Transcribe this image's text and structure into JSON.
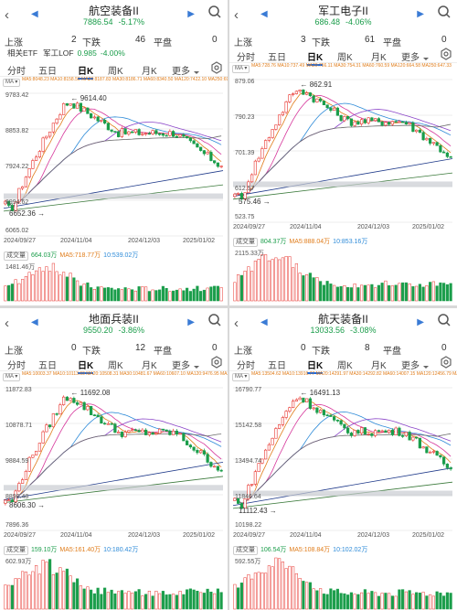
{
  "panels": [
    {
      "title": "航空装备II",
      "price": "7886.54",
      "change": "-5.17%",
      "up_label": "上涨",
      "up": "2",
      "down_label": "下跌",
      "down": "46",
      "flat_label": "平盘",
      "flat": "0",
      "etf": {
        "label": "相关ETF",
        "name": "军工LOF",
        "price": "0.985",
        "change": "-4.00%"
      },
      "tabs": [
        "分时",
        "五日",
        "日K",
        "周K",
        "月K",
        "更多"
      ],
      "ma_text": "MA5:8048.23 MA10:8158.50 MA20:8187.83 MA30:8186.71 MA60:8340.50 MA120:7422.10 MA250:6978.65",
      "y_labels": [
        "9783.42",
        "8853.82",
        "7924.22",
        "6994.62",
        "6065.02"
      ],
      "high_label": "9614.40",
      "low_label": "6652.36",
      "x_labels": [
        "2024/09/27",
        "2024/11/04",
        "2024/12/03",
        "2025/01/02"
      ],
      "vol_label": "成交量",
      "vol": "664.03万",
      "mavol5": "MA5:718.77万",
      "mavol10": "10:539.02万",
      "vol_axis": "1481.46万",
      "chart_data": {
        "type": "candlestick",
        "high": 9614.4,
        "low": 6652.36,
        "last": 7886.54,
        "y_range": [
          6065.02,
          9783.42
        ]
      }
    },
    {
      "title": "军工电子II",
      "price": "686.48",
      "change": "-4.06%",
      "up_label": "上涨",
      "up": "3",
      "down_label": "下跌",
      "down": "61",
      "flat_label": "平盘",
      "flat": "0",
      "tabs": [
        "分时",
        "五日",
        "日K",
        "周K",
        "月K",
        "更多"
      ],
      "ma_text": "MA5:728.76 MA10:737.49 MA20:756.11 MA30:754.31 MA60:760.59 MA120:664.58 MA250:647.33",
      "y_labels": [
        "879.06",
        "790.23",
        "701.39",
        "612.57",
        "523.75"
      ],
      "high_label": "862.91",
      "low_label": "575.46",
      "x_labels": [
        "2024/09/27",
        "2024/11/04",
        "2024/12/03",
        "2025/01/02"
      ],
      "vol_label": "成交量",
      "vol": "804.37万",
      "mavol5": "MA5:888.04万",
      "mavol10": "10:853.16万",
      "vol_axis": "2115.33万",
      "chart_data": {
        "type": "candlestick",
        "high": 862.91,
        "low": 575.46,
        "last": 686.48,
        "y_range": [
          523.75,
          879.06
        ]
      }
    },
    {
      "title": "地面兵装II",
      "price": "9550.20",
      "change": "-3.86%",
      "up_label": "上涨",
      "up": "0",
      "down_label": "下跌",
      "down": "12",
      "flat_label": "平盘",
      "flat": "0",
      "tabs": [
        "分时",
        "五日",
        "日K",
        "周K",
        "月K",
        "更多"
      ],
      "ma_text": "MA5:10003.37 MA10:10113.69 MA20:10508.31 MA30:10481.67 MA60:10607.10 MA120:9476.95 MA250:9292.41",
      "y_labels": [
        "11872.83",
        "10878.71",
        "9884.59",
        "8890.48",
        "7896.36"
      ],
      "high_label": "11692.08",
      "low_label": "8606.30",
      "x_labels": [
        "2024/09/27",
        "2024/11/04",
        "2024/12/03",
        "2025/01/02"
      ],
      "vol_label": "成交量",
      "vol": "159.10万",
      "mavol5": "MA5:161.40万",
      "mavol10": "10:180.42万",
      "vol_axis": "602.93万",
      "chart_data": {
        "type": "candlestick",
        "high": 11692.08,
        "low": 8606.3,
        "last": 9550.2,
        "y_range": [
          7896.36,
          11872.83
        ]
      }
    },
    {
      "title": "航天装备II",
      "price": "13033.56",
      "change": "-3.08%",
      "up_label": "上涨",
      "up": "0",
      "down_label": "下跌",
      "down": "8",
      "flat_label": "平盘",
      "flat": "0",
      "tabs": [
        "分时",
        "五日",
        "日K",
        "周K",
        "月K",
        "更多"
      ],
      "ma_text": "MA5:13504.62 MA10:13916.77 MA20:14291.97 MA30:14292.82 MA60:14007.15 MA120:12456.79 MA250:11887.03",
      "y_labels": [
        "16790.77",
        "15142.58",
        "13494.74",
        "11846.64",
        "10198.22"
      ],
      "high_label": "16491.13",
      "low_label": "11112.43",
      "x_labels": [
        "2024/09/27",
        "2024/11/04",
        "2024/12/03",
        "2025/01/02"
      ],
      "vol_label": "成交量",
      "vol": "106.54万",
      "mavol5": "MA5:108.84万",
      "mavol10": "10:102.02万",
      "vol_axis": "592.55万",
      "chart_data": {
        "type": "candlestick",
        "high": 16491.13,
        "low": 11112.43,
        "last": 13033.56,
        "y_range": [
          10198.22,
          16790.77
        ]
      }
    }
  ],
  "colors": {
    "up": "#e8352f",
    "down": "#1a9d4a",
    "accent": "#1b6ae0"
  }
}
